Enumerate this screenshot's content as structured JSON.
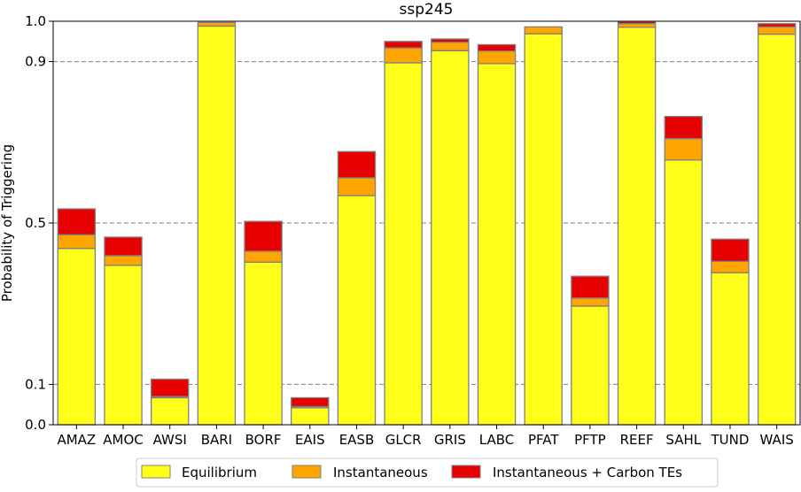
{
  "chart_data": {
    "type": "bar",
    "stacked": true,
    "title": "ssp245",
    "xlabel": "",
    "ylabel": "Probability of Triggering",
    "ylim": [
      0,
      1.0
    ],
    "yticks": [
      0.0,
      0.1,
      0.5,
      0.9,
      1.0
    ],
    "ytick_labels": [
      "0.0",
      "0.1",
      "0.5",
      "0.9",
      "1.0"
    ],
    "grid": "dashed horizontal at 0.1, 0.5, 0.9",
    "legend_position": "bottom",
    "categories": [
      "AMAZ",
      "AMOC",
      "AWSI",
      "BARI",
      "BORF",
      "EAIS",
      "EASB",
      "GLCR",
      "GRIS",
      "LABC",
      "PFAT",
      "PFTP",
      "REEF",
      "SAHL",
      "TUND",
      "WAIS"
    ],
    "series": [
      {
        "name": "Equilibrium",
        "color": "#ffff19",
        "values": [
          0.437,
          0.395,
          0.067,
          0.988,
          0.403,
          0.042,
          0.568,
          0.897,
          0.927,
          0.895,
          0.969,
          0.294,
          0.985,
          0.656,
          0.377,
          0.968
        ]
      },
      {
        "name": "Instantaneous",
        "color": "#ffa500",
        "values": [
          0.034,
          0.024,
          0.003,
          0.009,
          0.027,
          0.003,
          0.044,
          0.037,
          0.021,
          0.031,
          0.017,
          0.02,
          0.009,
          0.053,
          0.028,
          0.018
        ]
      },
      {
        "name": "Instantaneous + Carbon TEs",
        "color": "#e60000",
        "values": [
          0.064,
          0.046,
          0.043,
          0.0,
          0.074,
          0.022,
          0.065,
          0.016,
          0.008,
          0.016,
          0.0,
          0.054,
          0.005,
          0.055,
          0.055,
          0.008
        ]
      }
    ]
  }
}
